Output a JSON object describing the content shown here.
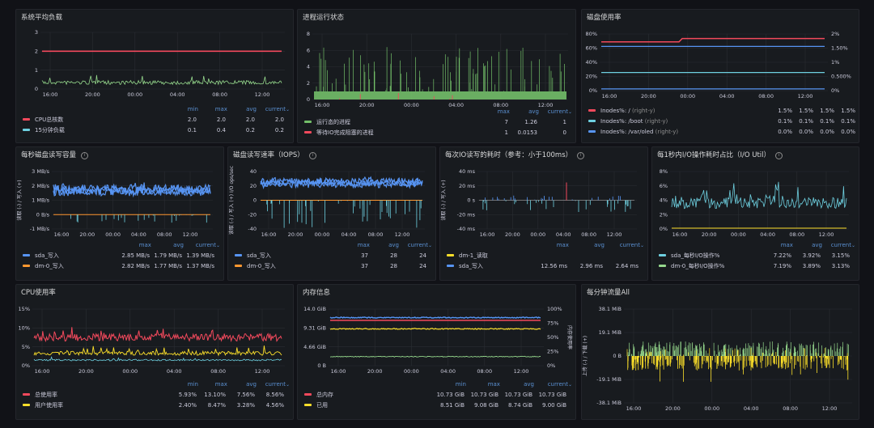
{
  "colors": {
    "green": "#73bf69",
    "yellow": "#fade2a",
    "blue": "#5794f2",
    "red": "#f2495c",
    "cyan": "#8ab8ff",
    "orange": "#ff9830",
    "teal": "#6ed0e0",
    "lime": "#96d98d"
  },
  "panels": {
    "load": {
      "title": "系统平均负载",
      "y_ticks": [
        "3",
        "2",
        "1",
        "0"
      ],
      "x_ticks": [
        "16:00",
        "20:00",
        "00:00",
        "04:00",
        "08:00",
        "12:00"
      ],
      "headers": [
        "min",
        "max",
        "avg",
        "current"
      ],
      "series": [
        {
          "name": "CPU总核数",
          "color": "red",
          "values": [
            "2.0",
            "2.0",
            "2.0",
            "2.0"
          ]
        },
        {
          "name": "15分钟负载",
          "color": "teal",
          "values": [
            "0.1",
            "0.4",
            "0.2",
            "0.2"
          ]
        }
      ]
    },
    "proc": {
      "title": "进程运行状态",
      "y_ticks": [
        "8",
        "6",
        "4",
        "2",
        "0"
      ],
      "x_ticks": [
        "16:00",
        "20:00",
        "00:00",
        "04:00",
        "08:00",
        "12:00"
      ],
      "headers": [
        "max",
        "avg",
        "current"
      ],
      "series": [
        {
          "name": "运行态的进程",
          "color": "green",
          "values": [
            "7",
            "1.26",
            "1"
          ]
        },
        {
          "name": "等待IO完成阻塞的进程",
          "color": "red",
          "values": [
            "1",
            "0.0153",
            "0"
          ]
        }
      ]
    },
    "disk": {
      "title": "磁盘使用率",
      "y_ticks": [
        "80%",
        "60%",
        "40%",
        "20%",
        "0%"
      ],
      "y_ticks_right": [
        "2%",
        "1.50%",
        "1%",
        "0.500%",
        "0%"
      ],
      "x_ticks": [
        "16:00",
        "20:00",
        "00:00",
        "04:00",
        "08:00",
        "12:00"
      ],
      "series": [
        {
          "name": "Inodes%: /",
          "sub": "(right-y)",
          "color": "red",
          "values": [
            "1.5%",
            "1.5%",
            "1.5%",
            "1.5%"
          ]
        },
        {
          "name": "Inodes%: /boot",
          "sub": "(right-y)",
          "color": "teal",
          "values": [
            "0.1%",
            "0.1%",
            "0.1%",
            "0.1%"
          ]
        },
        {
          "name": "Inodes%: /var/oled",
          "sub": "(right-y)",
          "color": "blue",
          "values": [
            "0.0%",
            "0.0%",
            "0.0%",
            "0.0%"
          ]
        }
      ]
    },
    "rw_bytes": {
      "title": "每秒磁盘读写容量",
      "y_ticks": [
        "3 MB/s",
        "2 MB/s",
        "1 MB/s",
        "0 B/s",
        "-1 MB/s"
      ],
      "y_label": "读取 (-) / 写入 (+)",
      "x_ticks": [
        "16:00",
        "20:00",
        "00:00",
        "04:00",
        "08:00",
        "12:00"
      ],
      "headers": [
        "max",
        "avg",
        "current"
      ],
      "series": [
        {
          "name": "sda_写入",
          "color": "blue",
          "values": [
            "2.85 MB/s",
            "1.79 MB/s",
            "1.39 MB/s"
          ]
        },
        {
          "name": "dm-0_写入",
          "color": "orange",
          "values": [
            "2.82 MB/s",
            "1.77 MB/s",
            "1.37 MB/s"
          ]
        }
      ]
    },
    "iops": {
      "title": "磁盘读写速率（IOPS）",
      "y_ticks": [
        "40",
        "20",
        "0",
        "-20",
        "-40"
      ],
      "y_label": "读取 (-) / 写入 (+) I/O ops/sec",
      "x_ticks": [
        "16:00",
        "20:00",
        "00:00",
        "04:00",
        "08:00",
        "12:00"
      ],
      "headers": [
        "max",
        "avg",
        "current"
      ],
      "series": [
        {
          "name": "sda_写入",
          "color": "blue",
          "values": [
            "37",
            "28",
            "24"
          ]
        },
        {
          "name": "dm-0_写入",
          "color": "orange",
          "values": [
            "37",
            "28",
            "24"
          ]
        }
      ]
    },
    "latency": {
      "title": "每次IO读写的耗时（参考：小于100ms）",
      "y_ticks": [
        "40 ms",
        "20 ms",
        "0 s",
        "-20 ms",
        "-40 ms"
      ],
      "y_label": "读取 (-) / 写入 (+)",
      "x_ticks": [
        "16:00",
        "20:00",
        "00:00",
        "04:00",
        "08:00",
        "12:00"
      ],
      "headers": [
        "max",
        "avg",
        "current"
      ],
      "series": [
        {
          "name": "dm-1_读取",
          "color": "yellow",
          "values": [
            "",
            "",
            ""
          ]
        },
        {
          "name": "sda_写入",
          "color": "blue",
          "values": [
            "12.56 ms",
            "2.96 ms",
            "2.64 ms"
          ]
        }
      ]
    },
    "util": {
      "title": "每1秒内I/O操作耗时占比（I/O Util）",
      "y_ticks": [
        "8%",
        "6%",
        "4%",
        "2%",
        "0%"
      ],
      "x_ticks": [
        "16:00",
        "20:00",
        "00:00",
        "04:00",
        "08:00",
        "12:00"
      ],
      "headers": [
        "max",
        "avg",
        "current"
      ],
      "series": [
        {
          "name": "sda_每秒I/O操作%",
          "color": "teal",
          "values": [
            "7.22%",
            "3.92%",
            "3.15%"
          ]
        },
        {
          "name": "dm-0_每秒I/O操作%",
          "color": "lime",
          "values": [
            "7.19%",
            "3.89%",
            "3.13%"
          ]
        }
      ]
    },
    "cpu": {
      "title": "CPU使用率",
      "y_ticks": [
        "15%",
        "10%",
        "5%",
        "0%"
      ],
      "x_ticks": [
        "16:00",
        "20:00",
        "00:00",
        "04:00",
        "08:00",
        "12:00"
      ],
      "headers": [
        "min",
        "max",
        "avg",
        "current"
      ],
      "series": [
        {
          "name": "总使用率",
          "color": "red",
          "values": [
            "5.93%",
            "13.10%",
            "7.56%",
            "8.56%"
          ]
        },
        {
          "name": "用户使用率",
          "color": "yellow",
          "values": [
            "2.40%",
            "8.47%",
            "3.28%",
            "4.56%"
          ]
        }
      ]
    },
    "mem": {
      "title": "内存信息",
      "y_ticks": [
        "14.0 GiB",
        "9.31 GiB",
        "4.66 GiB",
        "0 B"
      ],
      "y_ticks_right": [
        "100%",
        "75%",
        "50%",
        "25%",
        "0%"
      ],
      "y_label_right": "内存使用率",
      "x_ticks": [
        "16:00",
        "20:00",
        "00:00",
        "04:00",
        "08:00",
        "12:00"
      ],
      "headers": [
        "min",
        "max",
        "avg",
        "current"
      ],
      "series": [
        {
          "name": "总内存",
          "color": "red",
          "values": [
            "10.73 GiB",
            "10.73 GiB",
            "10.73 GiB",
            "10.73 GiB"
          ]
        },
        {
          "name": "已用",
          "color": "yellow",
          "values": [
            "8.51 GiB",
            "9.08 GiB",
            "8.74 GiB",
            "9.00 GiB"
          ]
        }
      ]
    },
    "net": {
      "title": "每分钟流量All",
      "y_ticks": [
        "38.1 MiB",
        "19.1 MiB",
        "0 B",
        "-19.1 MiB",
        "-38.1 MiB"
      ],
      "y_label": "上传 (-) / 下载 (+)",
      "x_ticks": [
        "16:00",
        "20:00",
        "00:00",
        "04:00",
        "08:00",
        "12:00"
      ]
    }
  }
}
